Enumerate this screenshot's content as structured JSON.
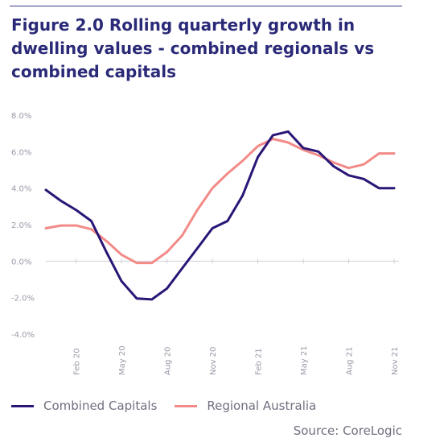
{
  "header": {
    "figure_label": "Figure 2.0",
    "title_text": "Rolling quarterly growth in dwelling values - combined regionals vs combined capitals"
  },
  "colors": {
    "capitals": "#2a1676",
    "regional": "#f28b88",
    "title": "#2b2a78"
  },
  "chart_data": {
    "type": "line",
    "title": "Figure 2.0 Rolling quarterly growth in dwelling values - combined regionals vs combined capitals",
    "ylim": [
      -4.0,
      8.0
    ],
    "y_ticks": [
      "8.0%",
      "6.0%",
      "4.0%",
      "2.0%",
      "0.0%",
      "-2.0%",
      "-4.0%"
    ],
    "y_tick_values": [
      8,
      6,
      4,
      2,
      0,
      -2,
      -4
    ],
    "x_ticks": [
      "Feb 20",
      "May 20",
      "Aug 20",
      "Nov 20",
      "Feb 21",
      "May 21",
      "Aug 21",
      "Nov 21"
    ],
    "x_tick_index": [
      2,
      5,
      8,
      11,
      14,
      17,
      20,
      23
    ],
    "x_count": 24,
    "x": [
      "Dec 19",
      "Jan 20",
      "Feb 20",
      "Mar 20",
      "Apr 20",
      "May 20",
      "Jun 20",
      "Jul 20",
      "Aug 20",
      "Sep 20",
      "Oct 20",
      "Nov 20",
      "Dec 20",
      "Jan 21",
      "Feb 21",
      "Mar 21",
      "Apr 21",
      "May 21",
      "Jun 21",
      "Jul 21",
      "Aug 21",
      "Sep 21",
      "Oct 21",
      "Nov 21"
    ],
    "series": [
      {
        "name": "Combined Capitals",
        "values": [
          3.9,
          3.3,
          2.8,
          2.2,
          0.5,
          -1.1,
          -2.05,
          -2.1,
          -1.5,
          -0.4,
          0.7,
          1.8,
          2.2,
          3.6,
          5.7,
          6.9,
          7.1,
          6.2,
          6.0,
          5.2,
          4.7,
          4.5,
          4.0,
          4.0
        ]
      },
      {
        "name": "Regional Australia",
        "values": [
          1.8,
          1.95,
          1.95,
          1.75,
          1.1,
          0.35,
          -0.1,
          -0.1,
          0.5,
          1.4,
          2.8,
          4.0,
          4.8,
          5.5,
          6.3,
          6.7,
          6.5,
          6.1,
          5.8,
          5.4,
          5.1,
          5.3,
          5.9,
          5.9
        ]
      }
    ],
    "legend_position": "bottom",
    "grid": false
  },
  "legend": {
    "capitals_label": "Combined Capitals",
    "regional_label": "Regional Australia"
  },
  "source": "Source: CoreLogic"
}
